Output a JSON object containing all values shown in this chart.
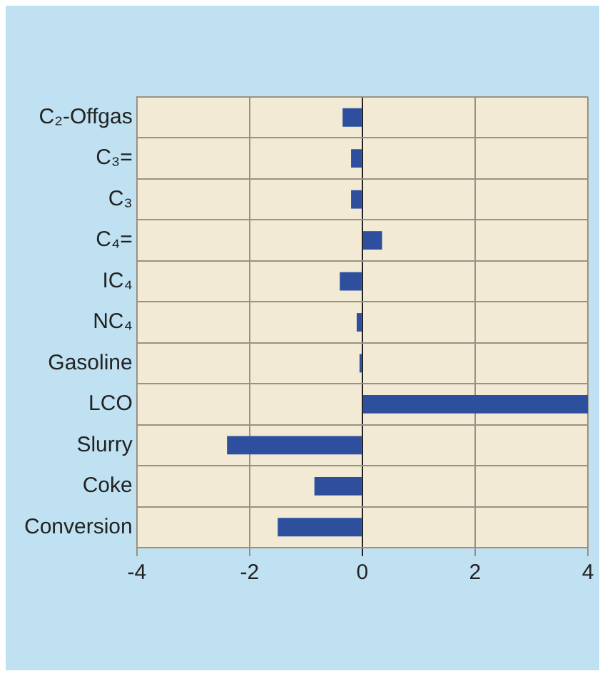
{
  "chart_data": {
    "type": "bar",
    "orientation": "horizontal",
    "categories": [
      "C₂-Offgas",
      "C₃=",
      "C₃",
      "C₄=",
      "IC₄",
      "NC₄",
      "Gasoline",
      "LCO",
      "Slurry",
      "Coke",
      "Conversion"
    ],
    "values": [
      -0.35,
      -0.2,
      -0.2,
      0.35,
      -0.4,
      -0.1,
      -0.05,
      4,
      -2.4,
      -0.85,
      -1.5
    ],
    "color": "#2e4f9e",
    "xlim": [
      -4,
      4
    ],
    "xticks": [
      -4,
      -2,
      0,
      2,
      4
    ],
    "grid": true,
    "legend": false
  }
}
